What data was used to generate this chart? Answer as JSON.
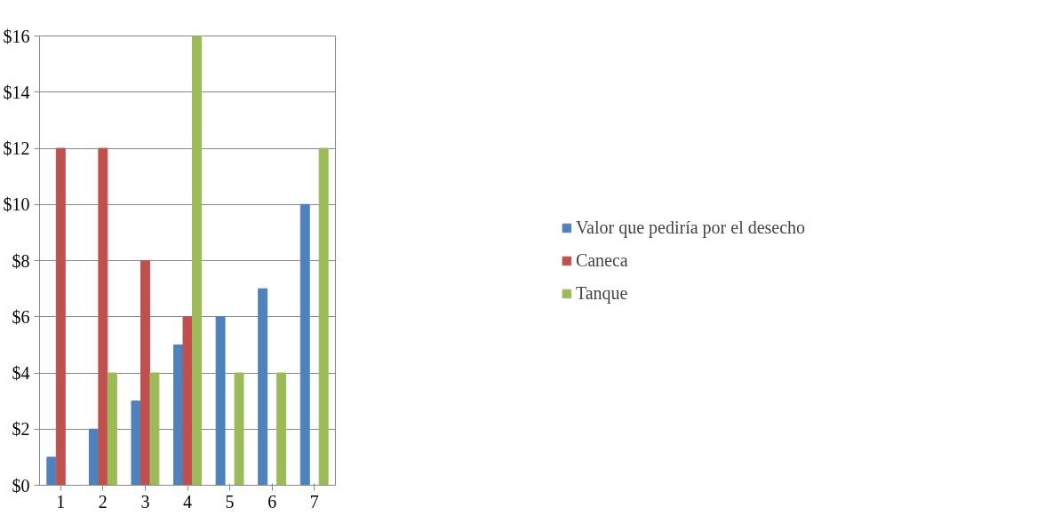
{
  "chart_data": {
    "type": "bar",
    "categories": [
      "1",
      "2",
      "3",
      "4",
      "5",
      "6",
      "7"
    ],
    "series": [
      {
        "name": "Valor que pediría por el desecho",
        "color": "#4f81bd",
        "values": [
          1,
          2,
          3,
          5,
          6,
          7,
          10
        ]
      },
      {
        "name": "Caneca",
        "color": "#c0504d",
        "values": [
          12,
          12,
          8,
          6,
          null,
          null,
          null
        ]
      },
      {
        "name": "Tanque",
        "color": "#9bbb59",
        "values": [
          null,
          4,
          4,
          16,
          4,
          4,
          12
        ]
      }
    ],
    "ylim": [
      0,
      16
    ],
    "yticks": [
      {
        "value": 0,
        "label": "$0"
      },
      {
        "value": 2,
        "label": "$2"
      },
      {
        "value": 4,
        "label": "$4"
      },
      {
        "value": 6,
        "label": "$6"
      },
      {
        "value": 8,
        "label": "$8"
      },
      {
        "value": 10,
        "label": "$10"
      },
      {
        "value": 12,
        "label": "$12"
      },
      {
        "value": 14,
        "label": "$14"
      },
      {
        "value": 16,
        "label": "$16"
      }
    ],
    "grid": "y",
    "legend": "right"
  }
}
